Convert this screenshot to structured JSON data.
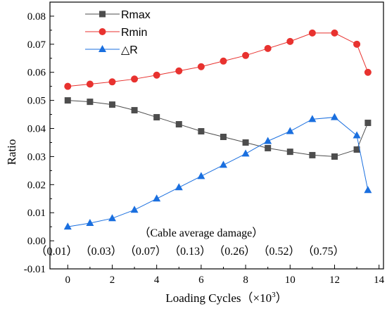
{
  "chart_data": {
    "type": "line",
    "xlabel": "Loading Cycles（×10",
    "xlabel_sup": "3",
    "xlabel_end": "）",
    "ylabel": "Ratio",
    "xlim": [
      -0.8,
      14.2
    ],
    "ylim": [
      -0.01,
      0.085
    ],
    "x_ticks": [
      "0",
      "2",
      "4",
      "6",
      "8",
      "10",
      "12",
      "14"
    ],
    "x_tick_values": [
      0,
      2,
      4,
      6,
      8,
      10,
      12,
      14
    ],
    "y_ticks": [
      "-0.01",
      "0.00",
      "0.01",
      "0.02",
      "0.03",
      "0.04",
      "0.05",
      "0.06",
      "0.07",
      "0.08"
    ],
    "y_tick_values": [
      -0.01,
      0.0,
      0.01,
      0.02,
      0.03,
      0.04,
      0.05,
      0.06,
      0.07,
      0.08
    ],
    "x": [
      0,
      1,
      2,
      3,
      4,
      5,
      6,
      7,
      8,
      9,
      10,
      11,
      12,
      13,
      13.5
    ],
    "series": [
      {
        "name": "Rmax",
        "color": "#4d4d4d",
        "marker": "square",
        "values": [
          0.05,
          0.0495,
          0.0485,
          0.0465,
          0.044,
          0.0415,
          0.039,
          0.037,
          0.035,
          0.033,
          0.0317,
          0.0305,
          0.03,
          0.0325,
          0.042
        ]
      },
      {
        "name": "Rmin",
        "color": "#e8322f",
        "marker": "circle",
        "values": [
          0.055,
          0.0558,
          0.0566,
          0.0576,
          0.059,
          0.0605,
          0.062,
          0.064,
          0.066,
          0.0685,
          0.071,
          0.074,
          0.074,
          0.07,
          0.06
        ]
      },
      {
        "name": "△R",
        "color": "#1a6fdf",
        "marker": "triangle",
        "values": [
          0.005,
          0.0063,
          0.008,
          0.011,
          0.015,
          0.019,
          0.023,
          0.027,
          0.031,
          0.0355,
          0.039,
          0.0433,
          0.044,
          0.0375,
          0.018
        ]
      }
    ],
    "legend_position": "top-left",
    "grid": false
  },
  "annotation": {
    "title": "（Cable average damage）",
    "labels": [
      "（0.01）",
      "（0.03）",
      "（0.07）",
      "（0.13）",
      "（0.26）",
      "（0.52）",
      "（0.75）"
    ],
    "label_x": [
      -0.5,
      1.5,
      3.5,
      5.5,
      7.5,
      9.5,
      11.5
    ]
  }
}
